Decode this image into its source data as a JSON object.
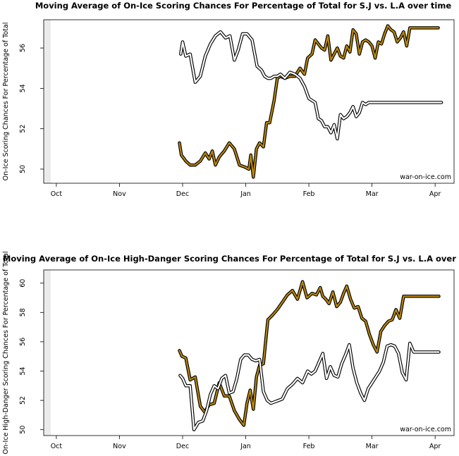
{
  "colors": {
    "sj_outer": "#000000",
    "sj_inner": "#b8860b",
    "la_outer": "#000000",
    "la_inner": "#ffffff",
    "left_band": "#ebebeb"
  },
  "chart_data": [
    {
      "type": "line",
      "title": "Moving Average of On-Ice Scoring Chances For Percentage of Total for S.J vs. L.A over time",
      "xlabel": "",
      "ylabel": "On-Ice Scoring Chances For Percentage of Total",
      "watermark": "war-on-ice.com",
      "x_ticks": [
        0,
        1,
        2,
        3,
        4,
        5,
        6
      ],
      "x_tick_labels": [
        "Oct",
        "Nov",
        "Dec",
        "Jan",
        "Feb",
        "Mar",
        "Apr"
      ],
      "y_ticks": [
        50,
        52,
        54,
        56
      ],
      "y_tick_labels": [
        "50",
        "52",
        "54",
        "56"
      ],
      "xlim": [
        -0.2,
        6.3
      ],
      "ylim": [
        49.3,
        57.4
      ],
      "grid": false,
      "series": [
        {
          "key": "sj",
          "x": [
            1.95,
            1.98,
            2.05,
            2.12,
            2.2,
            2.28,
            2.36,
            2.42,
            2.47,
            2.52,
            2.58,
            2.66,
            2.74,
            2.82,
            2.9,
            2.99,
            3.05,
            3.08,
            3.12,
            3.17,
            3.22,
            3.28,
            3.33,
            3.38,
            3.45,
            3.5,
            3.55,
            3.62,
            3.7,
            3.78,
            3.86,
            3.93,
            3.98,
            4.05,
            4.1,
            4.15,
            4.2,
            4.25,
            4.3,
            4.35,
            4.4,
            4.45,
            4.5,
            4.55,
            4.6,
            4.65,
            4.7,
            4.75,
            4.8,
            4.85,
            4.9,
            4.95,
            5.0,
            5.05,
            5.1,
            5.15,
            5.2,
            5.25,
            5.3,
            5.35,
            5.4,
            5.45,
            5.5,
            5.55,
            5.6,
            5.65,
            5.7,
            5.75,
            5.8,
            5.85,
            5.9,
            5.95,
            6.0,
            6.05
          ],
          "y": [
            51.3,
            50.7,
            50.4,
            50.2,
            50.2,
            50.4,
            50.8,
            50.5,
            50.9,
            50.2,
            50.6,
            50.9,
            51.3,
            51.0,
            50.2,
            50.1,
            50.0,
            50.7,
            49.6,
            51.0,
            51.3,
            51.1,
            52.3,
            52.3,
            53.4,
            54.5,
            54.6,
            54.5,
            54.6,
            54.6,
            55.0,
            54.7,
            55.5,
            55.7,
            56.4,
            56.2,
            56.0,
            55.9,
            56.6,
            55.4,
            55.7,
            56.0,
            55.6,
            55.5,
            56.1,
            55.8,
            56.9,
            56.7,
            55.7,
            56.3,
            56.4,
            56.3,
            56.1,
            55.5,
            56.3,
            56.2,
            56.7,
            57.1,
            56.9,
            56.8,
            56.3,
            56.5,
            56.8,
            56.1,
            57.0,
            57.0,
            57.0,
            57.0,
            57.0,
            57.0,
            57.0,
            57.0,
            57.0,
            57.0
          ]
        },
        {
          "key": "la",
          "x": [
            1.97,
            2.0,
            2.05,
            2.12,
            2.2,
            2.28,
            2.36,
            2.44,
            2.52,
            2.6,
            2.68,
            2.75,
            2.82,
            2.88,
            2.95,
            3.02,
            3.1,
            3.18,
            3.25,
            3.3,
            3.35,
            3.4,
            3.45,
            3.5,
            3.55,
            3.62,
            3.7,
            3.78,
            3.86,
            3.93,
            4.0,
            4.05,
            4.1,
            4.15,
            4.2,
            4.25,
            4.3,
            4.35,
            4.4,
            4.45,
            4.5,
            4.55,
            4.6,
            4.65,
            4.7,
            4.75,
            4.8,
            4.85,
            4.9,
            4.95,
            5.0,
            5.05,
            5.1,
            5.15,
            5.2,
            5.25,
            5.3,
            5.35,
            5.4,
            5.45,
            5.5,
            5.55,
            5.6,
            5.65,
            5.7,
            5.75,
            5.8,
            5.85,
            5.9,
            5.95,
            6.0,
            6.05,
            6.1
          ],
          "y": [
            55.7,
            56.3,
            55.6,
            55.7,
            54.3,
            54.6,
            55.6,
            56.2,
            56.6,
            56.8,
            56.5,
            56.6,
            55.4,
            55.9,
            56.7,
            56.7,
            56.4,
            55.1,
            54.9,
            54.6,
            54.5,
            54.5,
            54.6,
            54.6,
            54.7,
            54.5,
            54.8,
            54.7,
            54.5,
            54.1,
            53.5,
            53.4,
            53.3,
            52.5,
            52.4,
            52.1,
            52.1,
            51.8,
            52.2,
            51.5,
            52.7,
            52.5,
            52.6,
            52.8,
            53.1,
            52.6,
            52.8,
            53.3,
            53.2,
            53.3,
            53.3,
            53.3,
            53.3,
            53.3,
            53.3,
            53.3,
            53.3,
            53.3,
            53.3,
            53.3,
            53.3,
            53.3,
            53.3,
            53.3,
            53.3,
            53.3,
            53.3,
            53.3,
            53.3,
            53.3,
            53.3,
            53.3,
            53.3
          ]
        }
      ]
    },
    {
      "type": "line",
      "title": "Moving Average of On-Ice High-Danger Scoring Chances For Percentage of Total for S.J vs. L.A over time",
      "xlabel": "",
      "ylabel": "On-Ice High-Danger Scoring Chances For Percentage of Total",
      "watermark": "war-on-ice.com",
      "x_ticks": [
        0,
        1,
        2,
        3,
        4,
        5,
        6
      ],
      "x_tick_labels": [
        "Oct",
        "Nov",
        "Dec",
        "Jan",
        "Feb",
        "Mar",
        "Apr"
      ],
      "y_ticks": [
        50,
        52,
        54,
        56,
        58,
        60
      ],
      "y_tick_labels": [
        "50",
        "52",
        "54",
        "56",
        "58",
        "60"
      ],
      "xlim": [
        -0.2,
        6.3
      ],
      "ylim": [
        49.6,
        60.9
      ],
      "grid": false,
      "series": [
        {
          "key": "sj",
          "x": [
            1.95,
            1.99,
            2.05,
            2.12,
            2.2,
            2.28,
            2.35,
            2.42,
            2.5,
            2.58,
            2.66,
            2.74,
            2.82,
            2.9,
            2.97,
            3.02,
            3.07,
            3.12,
            3.17,
            3.22,
            3.28,
            3.35,
            3.42,
            3.5,
            3.58,
            3.66,
            3.74,
            3.82,
            3.9,
            3.97,
            4.05,
            4.12,
            4.18,
            4.22,
            4.27,
            4.32,
            4.38,
            4.44,
            4.5,
            4.55,
            4.6,
            4.66,
            4.72,
            4.78,
            4.84,
            4.9,
            4.96,
            5.02,
            5.08,
            5.14,
            5.2,
            5.26,
            5.32,
            5.38,
            5.44,
            5.5,
            5.56,
            5.62,
            5.68,
            5.74,
            5.8,
            5.86,
            5.92,
            5.98,
            6.02,
            6.06
          ],
          "y": [
            55.4,
            55.0,
            54.9,
            53.4,
            53.6,
            51.6,
            51.2,
            51.7,
            51.8,
            53.2,
            52.3,
            52.3,
            51.3,
            50.7,
            50.3,
            51.8,
            52.7,
            51.4,
            53.6,
            54.4,
            54.5,
            57.5,
            57.8,
            58.2,
            58.7,
            59.2,
            59.5,
            58.9,
            60.1,
            59.0,
            59.3,
            59.2,
            59.7,
            59.1,
            58.9,
            58.6,
            59.4,
            58.4,
            58.7,
            59.3,
            59.8,
            58.9,
            58.3,
            58.4,
            57.6,
            57.4,
            56.5,
            55.8,
            55.3,
            56.7,
            57.1,
            57.4,
            57.5,
            58.2,
            57.6,
            59.1,
            59.1,
            59.1,
            59.1,
            59.1,
            59.1,
            59.1,
            59.1,
            59.1,
            59.1,
            59.1
          ]
        },
        {
          "key": "la",
          "x": [
            1.96,
            2.0,
            2.05,
            2.12,
            2.18,
            2.25,
            2.32,
            2.38,
            2.44,
            2.5,
            2.56,
            2.62,
            2.68,
            2.74,
            2.8,
            2.86,
            2.92,
            2.98,
            3.04,
            3.1,
            3.16,
            3.22,
            3.28,
            3.34,
            3.4,
            3.46,
            3.52,
            3.58,
            3.66,
            3.74,
            3.82,
            3.9,
            3.98,
            4.04,
            4.1,
            4.16,
            4.22,
            4.28,
            4.34,
            4.4,
            4.46,
            4.52,
            4.58,
            4.64,
            4.7,
            4.76,
            4.82,
            4.88,
            4.94,
            5.0,
            5.06,
            5.12,
            5.18,
            5.24,
            5.3,
            5.36,
            5.42,
            5.48,
            5.54,
            5.6,
            5.66,
            5.72,
            5.78,
            5.84,
            5.9,
            5.96,
            6.02,
            6.06
          ],
          "y": [
            53.7,
            53.5,
            53.0,
            53.0,
            50.0,
            50.5,
            50.6,
            51.3,
            52.4,
            53.0,
            52.8,
            53.5,
            53.7,
            52.5,
            52.6,
            53.5,
            54.8,
            55.1,
            55.1,
            54.8,
            54.7,
            54.8,
            52.6,
            52.0,
            51.8,
            51.9,
            52.0,
            52.1,
            52.8,
            53.1,
            53.5,
            53.2,
            54.0,
            53.8,
            54.0,
            54.6,
            55.2,
            53.5,
            54.3,
            53.7,
            53.6,
            54.5,
            55.1,
            55.8,
            54.2,
            53.2,
            52.5,
            52.0,
            52.8,
            53.2,
            53.6,
            54.0,
            54.6,
            55.7,
            55.8,
            55.7,
            55.2,
            53.9,
            53.4,
            55.9,
            55.3,
            55.3,
            55.3,
            55.3,
            55.3,
            55.3,
            55.3,
            55.3
          ]
        }
      ]
    }
  ]
}
